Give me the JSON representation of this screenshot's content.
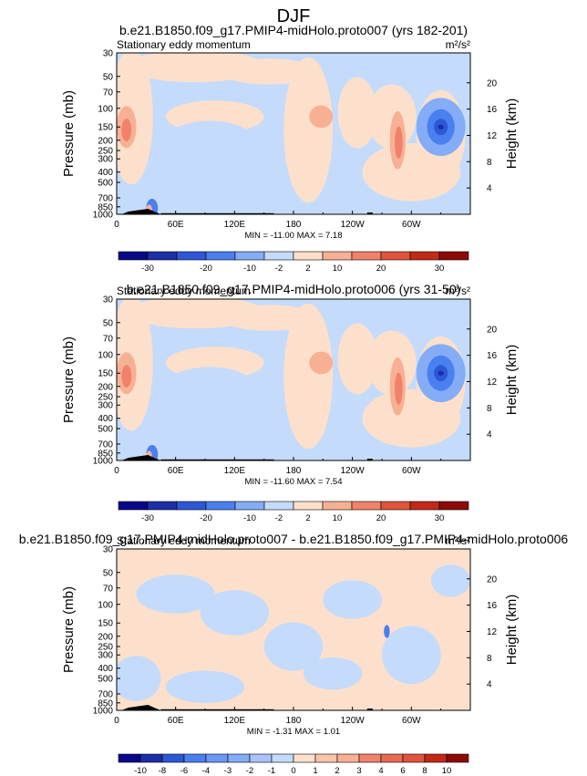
{
  "page_title": "DJF",
  "colors": {
    "neg": [
      "#08088a",
      "#1c2fa6",
      "#2c57d6",
      "#4a7ff0",
      "#84acf7",
      "#c4dbfb"
    ],
    "pos": [
      "#fde0cb",
      "#f8b094",
      "#f0826b",
      "#e0543c",
      "#c32917",
      "#8d0a05"
    ],
    "topography": "#000000"
  },
  "panels": [
    {
      "title": "b.e21.B1850.f09_g17.PMIP4-midHolo.proto007 (yrs 182-201)",
      "left_label": "Stationary eddy momentum",
      "units": "m²/s²",
      "stats": "MIN = -11.00   MAX =  7.18",
      "colorbar_labels": [
        "-30",
        "-20",
        "-10",
        "-2",
        "2",
        "10",
        "20",
        "30"
      ]
    },
    {
      "title": "b.e21.B1850.f09_g17.PMIP4-midHolo.proto006 (yrs 31-50)",
      "left_label": "Stationary eddy momentum",
      "units": "m²/s²",
      "stats": "MIN = -11.60   MAX =  7.54",
      "colorbar_labels": [
        "-30",
        "-20",
        "-10",
        "-2",
        "2",
        "10",
        "20",
        "30"
      ]
    },
    {
      "title": "b.e21.B1850.f09_g17.PMIP4-midHolo.proto007 - b.e21.B1850.f09_g17.PMIP4-midHolo.proto006",
      "left_label": "Stationary eddy momentum",
      "units": "m²/s²",
      "stats": "MIN = -1.31   MAX =  1.01",
      "colorbar_labels": [
        "-10",
        "-8",
        "-6",
        "-4",
        "-3",
        "-2",
        "-1",
        "0",
        "1",
        "2",
        "3",
        "4",
        "6",
        "8",
        "10"
      ]
    }
  ],
  "chart_data": [
    {
      "type": "heatmap",
      "title": "b.e21.B1850.f09_g17.PMIP4-midHolo.proto007 (yrs 182-201)",
      "xlabel": "",
      "ylabel": "Pressure (mb)",
      "y2label": "Height (km)",
      "x_ticks": [
        "0",
        "60E",
        "120E",
        "180",
        "120W",
        "60W"
      ],
      "y_ticks": [
        "30",
        "50",
        "70",
        "100",
        "150",
        "200",
        "250",
        "300",
        "400",
        "500",
        "700",
        "850",
        "1000"
      ],
      "y2_ticks": [
        "20",
        "16",
        "12",
        "8",
        "4"
      ],
      "y_scale": "log",
      "ylim": [
        1000,
        30
      ],
      "min": -11.0,
      "max": 7.18,
      "levels": [
        -30,
        -20,
        -10,
        -2,
        2,
        10,
        20,
        30
      ]
    },
    {
      "type": "heatmap",
      "title": "b.e21.B1850.f09_g17.PMIP4-midHolo.proto006 (yrs 31-50)",
      "xlabel": "",
      "ylabel": "Pressure (mb)",
      "y2label": "Height (km)",
      "x_ticks": [
        "0",
        "60E",
        "120E",
        "180",
        "120W",
        "60W"
      ],
      "y_ticks": [
        "30",
        "50",
        "70",
        "100",
        "150",
        "200",
        "250",
        "300",
        "400",
        "500",
        "700",
        "850",
        "1000"
      ],
      "y2_ticks": [
        "20",
        "16",
        "12",
        "8",
        "4"
      ],
      "y_scale": "log",
      "ylim": [
        1000,
        30
      ],
      "min": -11.6,
      "max": 7.54,
      "levels": [
        -30,
        -20,
        -10,
        -2,
        2,
        10,
        20,
        30
      ]
    },
    {
      "type": "heatmap",
      "title": "b.e21.B1850.f09_g17.PMIP4-midHolo.proto007 - b.e21.B1850.f09_g17.PMIP4-midHolo.proto006",
      "xlabel": "",
      "ylabel": "Pressure (mb)",
      "y2label": "Height (km)",
      "x_ticks": [
        "0",
        "60E",
        "120E",
        "180",
        "120W",
        "60W"
      ],
      "y_ticks": [
        "30",
        "50",
        "70",
        "100",
        "150",
        "200",
        "250",
        "300",
        "400",
        "500",
        "700",
        "850",
        "1000"
      ],
      "y2_ticks": [
        "20",
        "16",
        "12",
        "8",
        "4"
      ],
      "y_scale": "log",
      "ylim": [
        1000,
        30
      ],
      "min": -1.31,
      "max": 1.01,
      "levels": [
        -10,
        -8,
        -6,
        -4,
        -3,
        -2,
        -1,
        0,
        1,
        2,
        3,
        4,
        6,
        8,
        10
      ]
    }
  ]
}
